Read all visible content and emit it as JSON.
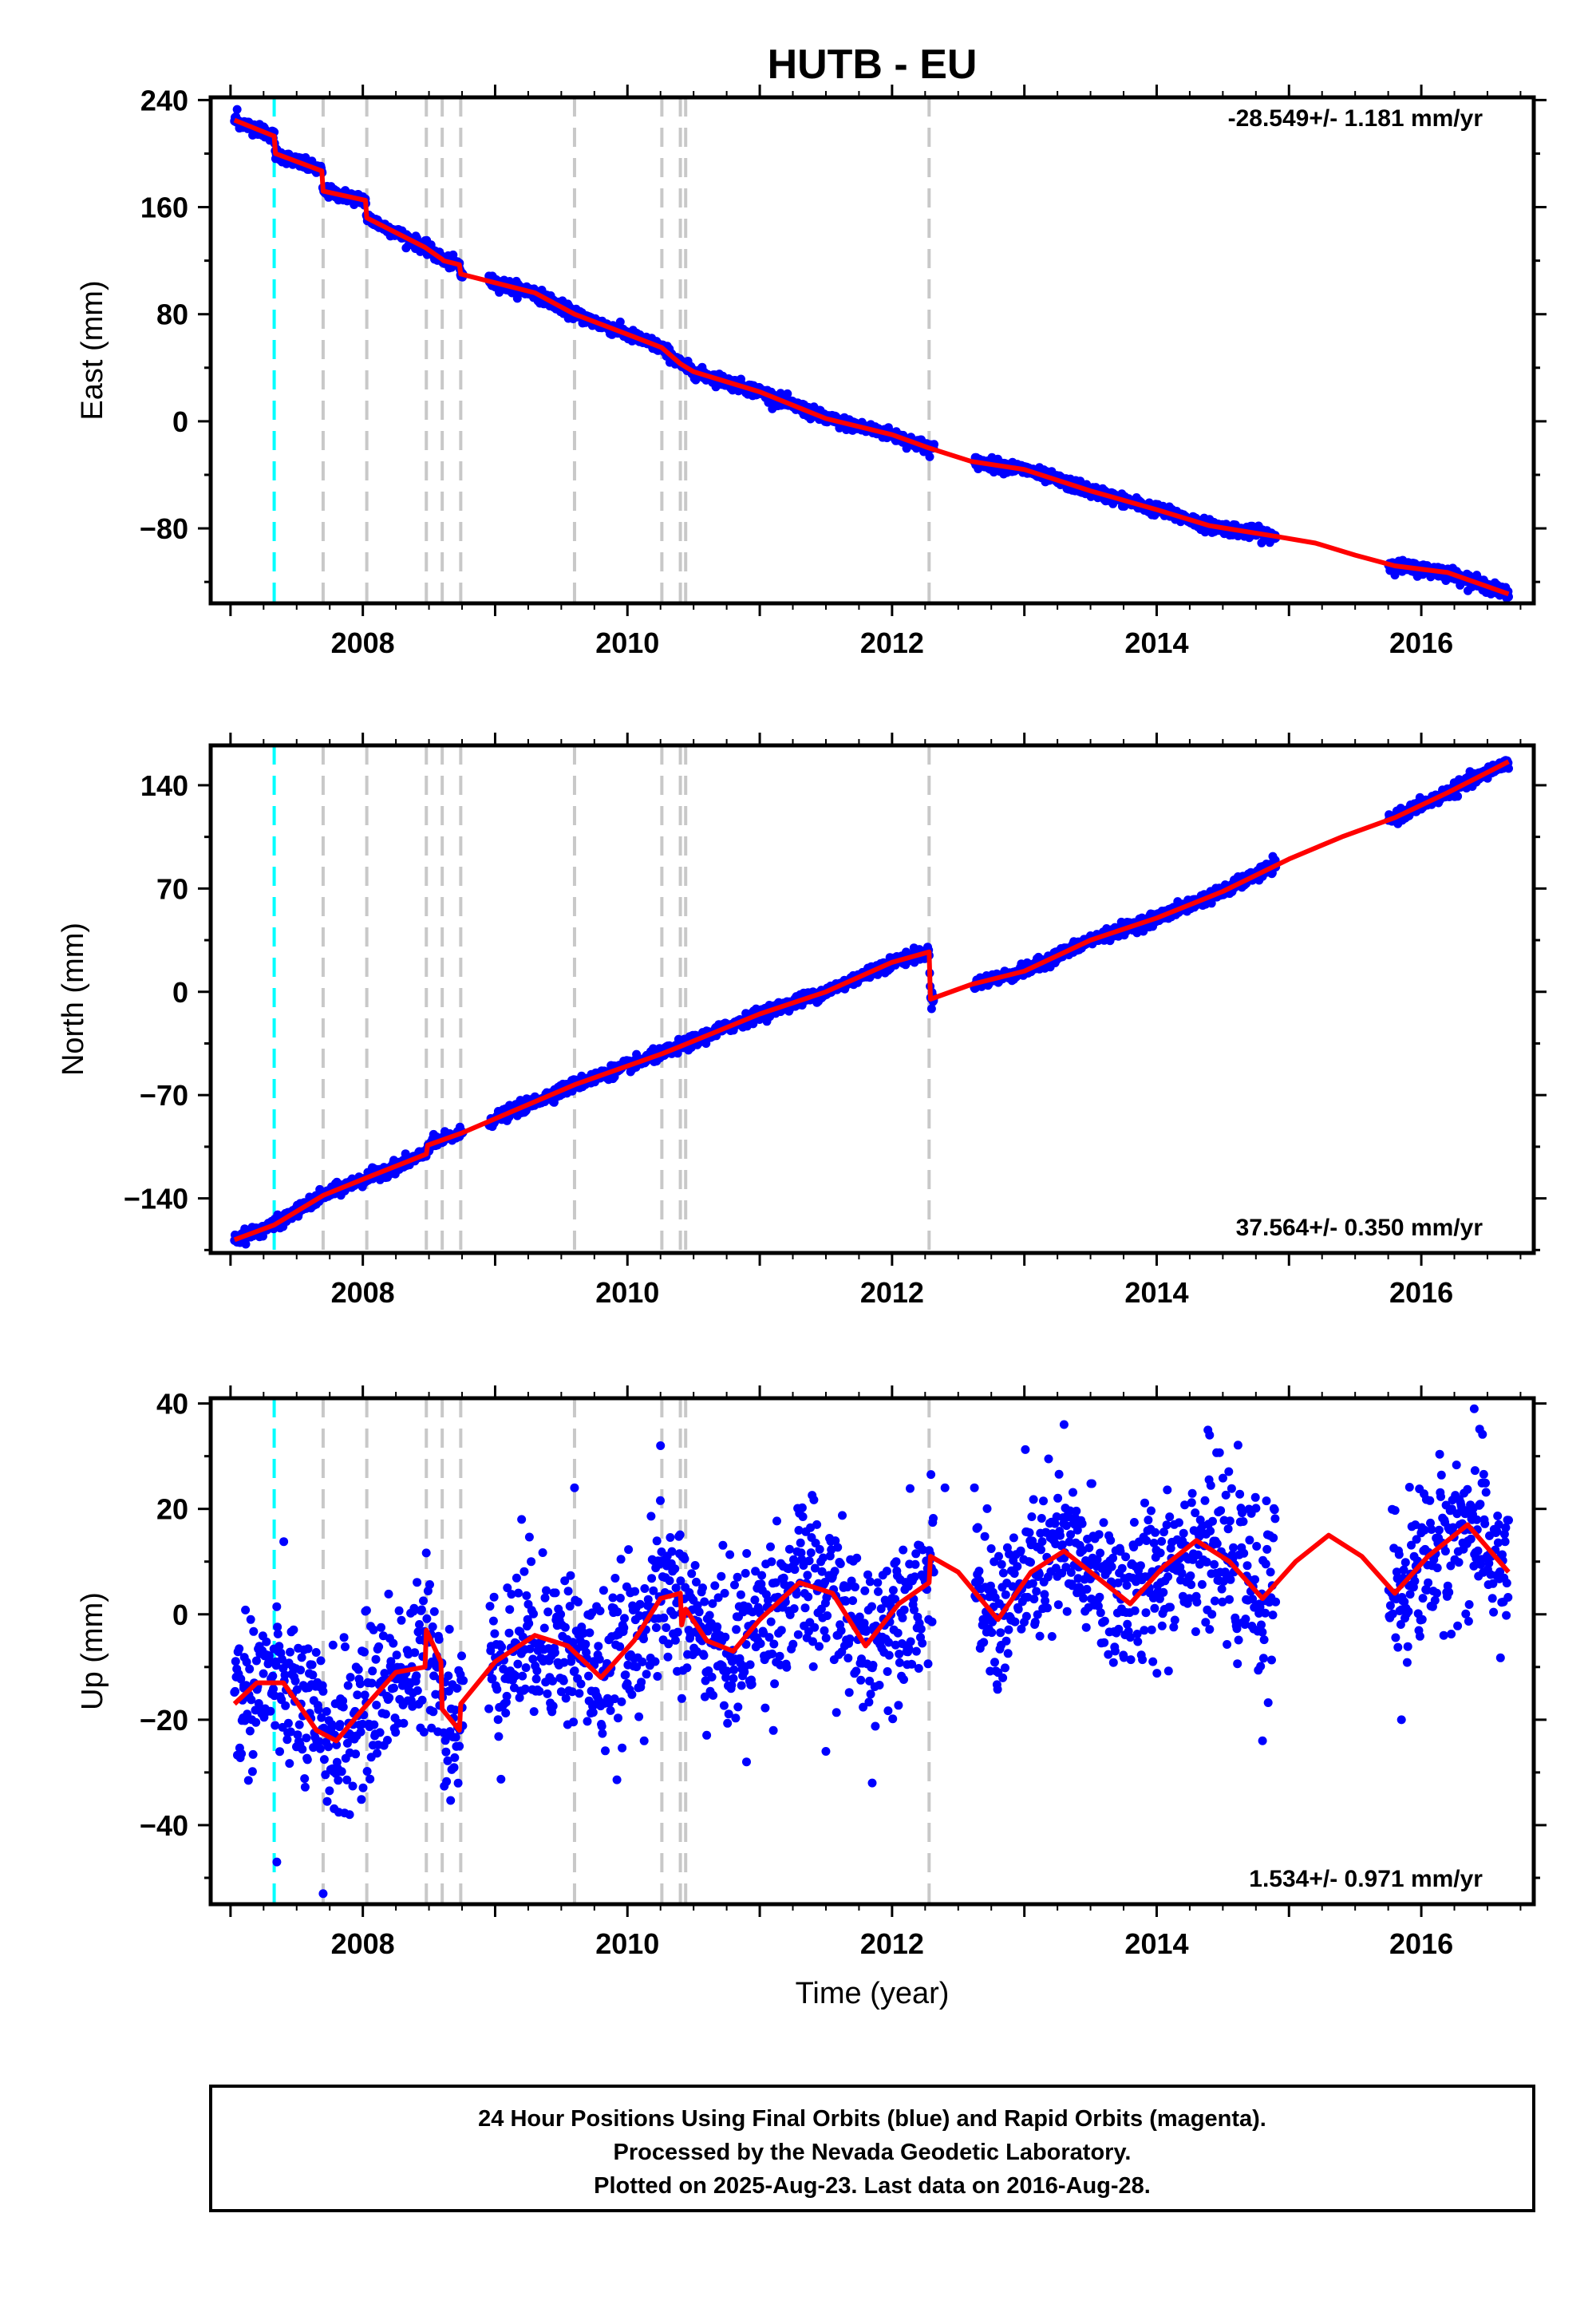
{
  "figure": {
    "title": "HUTB - EU",
    "xlabel": "Time (year)",
    "footer": [
      "24 Hour Positions Using Final Orbits (blue) and Rapid Orbits (magenta).",
      "Processed by the Nevada Geodetic Laboratory.",
      "Plotted on 2025-Aug-23. Last data on 2016-Aug-28."
    ]
  },
  "colors": {
    "data_points": "#0000ff",
    "model_line": "#ff0000",
    "equipment_change": "#c8c8c8",
    "earthquake": "#00ffff",
    "frame": "#000000"
  },
  "event_lines": {
    "earthquake": [
      2007.33
    ],
    "equipment": [
      2007.7,
      2008.03,
      2008.48,
      2008.6,
      2008.74,
      2009.6,
      2010.26,
      2010.4,
      2010.44,
      2012.28
    ]
  },
  "chart_data": [
    {
      "type": "scatter",
      "component": "East",
      "ylabel": "East (mm)",
      "rate_text": "-28.549+/- 1.181 mm/yr",
      "rate_position": "top-right",
      "xlim": [
        2006.85,
        2016.85
      ],
      "ylim": [
        -136,
        242
      ],
      "x_ticks": [
        2008,
        2010,
        2012,
        2014,
        2016
      ],
      "y_ticks": [
        -80,
        0,
        80,
        160,
        240
      ],
      "y_tick_labels": [
        "−80",
        "0",
        "80",
        "160",
        "240"
      ],
      "x_tick_labels": [
        "2008",
        "2010",
        "2012",
        "2014",
        "2016"
      ],
      "data_gaps": [
        [
          2008.76,
          2008.95
        ],
        [
          2012.32,
          2012.62
        ],
        [
          2014.9,
          2015.75
        ]
      ],
      "model_line": [
        [
          2007.03,
          225
        ],
        [
          2007.33,
          213
        ],
        [
          2007.34,
          200
        ],
        [
          2007.69,
          187
        ],
        [
          2007.7,
          172
        ],
        [
          2008.02,
          165
        ],
        [
          2008.03,
          152
        ],
        [
          2008.47,
          130
        ],
        [
          2008.6,
          121
        ],
        [
          2008.61,
          120
        ],
        [
          2008.73,
          117
        ],
        [
          2008.74,
          110
        ],
        [
          2009.3,
          96
        ],
        [
          2009.6,
          80
        ],
        [
          2010.0,
          65
        ],
        [
          2010.26,
          55
        ],
        [
          2010.4,
          43
        ],
        [
          2010.5,
          37
        ],
        [
          2011.0,
          22
        ],
        [
          2011.5,
          2
        ],
        [
          2012.0,
          -10
        ],
        [
          2012.28,
          -20
        ],
        [
          2012.6,
          -30
        ],
        [
          2013.0,
          -36
        ],
        [
          2013.5,
          -52
        ],
        [
          2014.0,
          -66
        ],
        [
          2014.4,
          -78
        ],
        [
          2014.9,
          -86
        ],
        [
          2015.2,
          -91
        ],
        [
          2015.5,
          -100
        ],
        [
          2015.8,
          -108
        ],
        [
          2016.2,
          -113
        ],
        [
          2016.66,
          -129
        ]
      ],
      "sample_points": [
        [
          2007.05,
          233
        ],
        [
          2007.25,
          220
        ],
        [
          2007.55,
          190
        ],
        [
          2007.85,
          166
        ],
        [
          2008.25,
          143
        ],
        [
          2008.55,
          124
        ],
        [
          2009.1,
          100
        ],
        [
          2009.5,
          84
        ],
        [
          2010.1,
          60
        ],
        [
          2010.7,
          30
        ],
        [
          2011.3,
          10
        ],
        [
          2011.9,
          -8
        ],
        [
          2012.8,
          -33
        ],
        [
          2013.3,
          -45
        ],
        [
          2013.9,
          -62
        ],
        [
          2014.6,
          -82
        ],
        [
          2015.9,
          -108
        ],
        [
          2016.5,
          -122
        ]
      ]
    },
    {
      "type": "scatter",
      "component": "North",
      "ylabel": "North (mm)",
      "rate_text": "37.564+/- 0.350 mm/yr",
      "rate_position": "bottom-right",
      "xlim": [
        2006.85,
        2016.85
      ],
      "ylim": [
        -177,
        167
      ],
      "x_ticks": [
        2008,
        2010,
        2012,
        2014,
        2016
      ],
      "y_ticks": [
        -140,
        -70,
        0,
        70,
        140
      ],
      "y_tick_labels": [
        "−140",
        "−70",
        "0",
        "70",
        "140"
      ],
      "x_tick_labels": [
        "2008",
        "2010",
        "2012",
        "2014",
        "2016"
      ],
      "data_gaps": [
        [
          2008.76,
          2008.95
        ],
        [
          2012.32,
          2012.62
        ],
        [
          2014.9,
          2015.75
        ]
      ],
      "model_line": [
        [
          2007.03,
          -168
        ],
        [
          2007.33,
          -158
        ],
        [
          2007.7,
          -138
        ],
        [
          2008.03,
          -126
        ],
        [
          2008.48,
          -110
        ],
        [
          2008.49,
          -104
        ],
        [
          2008.74,
          -96
        ],
        [
          2009.6,
          -63
        ],
        [
          2010.26,
          -42
        ],
        [
          2010.4,
          -37
        ],
        [
          2011.0,
          -15
        ],
        [
          2011.5,
          0
        ],
        [
          2012.0,
          20
        ],
        [
          2012.28,
          27
        ],
        [
          2012.29,
          -5
        ],
        [
          2012.6,
          5
        ],
        [
          2013.0,
          14
        ],
        [
          2013.5,
          35
        ],
        [
          2014.0,
          50
        ],
        [
          2014.5,
          68
        ],
        [
          2015.0,
          90
        ],
        [
          2015.4,
          105
        ],
        [
          2015.8,
          118
        ],
        [
          2016.2,
          135
        ],
        [
          2016.66,
          156
        ]
      ],
      "sample_points": [
        [
          2007.1,
          -166
        ],
        [
          2007.6,
          -143
        ],
        [
          2008.2,
          -122
        ],
        [
          2009.2,
          -82
        ],
        [
          2009.9,
          -52
        ],
        [
          2010.6,
          -28
        ],
        [
          2011.4,
          -3
        ],
        [
          2012.1,
          22
        ],
        [
          2012.8,
          10
        ],
        [
          2013.4,
          30
        ],
        [
          2014.2,
          58
        ],
        [
          2014.8,
          85
        ],
        [
          2015.9,
          120
        ],
        [
          2016.5,
          150
        ]
      ]
    },
    {
      "type": "scatter",
      "component": "Up",
      "ylabel": "Up (mm)",
      "rate_text": "1.534+/- 0.971 mm/yr",
      "rate_position": "bottom-right",
      "xlim": [
        2006.85,
        2016.85
      ],
      "ylim": [
        -55,
        41
      ],
      "x_ticks": [
        2008,
        2010,
        2012,
        2014,
        2016
      ],
      "y_ticks": [
        -40,
        -20,
        0,
        20,
        40
      ],
      "y_tick_labels": [
        "−40",
        "−20",
        "0",
        "20",
        "40"
      ],
      "x_tick_labels": [
        "2008",
        "2010",
        "2012",
        "2014",
        "2016"
      ],
      "data_gaps": [
        [
          2008.76,
          2008.95
        ],
        [
          2012.32,
          2012.62
        ],
        [
          2014.9,
          2015.75
        ]
      ],
      "model_line": [
        [
          2007.03,
          -17
        ],
        [
          2007.2,
          -13
        ],
        [
          2007.4,
          -13
        ],
        [
          2007.65,
          -22
        ],
        [
          2007.8,
          -24
        ],
        [
          2008.0,
          -18
        ],
        [
          2008.25,
          -11
        ],
        [
          2008.47,
          -10
        ],
        [
          2008.48,
          -3
        ],
        [
          2008.59,
          -9
        ],
        [
          2008.6,
          -18
        ],
        [
          2008.73,
          -22
        ],
        [
          2008.74,
          -17
        ],
        [
          2009.0,
          -9
        ],
        [
          2009.3,
          -4
        ],
        [
          2009.55,
          -6
        ],
        [
          2009.8,
          -12
        ],
        [
          2010.05,
          -5
        ],
        [
          2010.25,
          3
        ],
        [
          2010.4,
          4
        ],
        [
          2010.41,
          -2
        ],
        [
          2010.44,
          1
        ],
        [
          2010.6,
          -5
        ],
        [
          2010.8,
          -7
        ],
        [
          2011.0,
          -1
        ],
        [
          2011.3,
          6
        ],
        [
          2011.55,
          4
        ],
        [
          2011.8,
          -6
        ],
        [
          2012.05,
          2
        ],
        [
          2012.28,
          6
        ],
        [
          2012.29,
          11
        ],
        [
          2012.5,
          8
        ],
        [
          2012.8,
          -1
        ],
        [
          2013.05,
          8
        ],
        [
          2013.3,
          12
        ],
        [
          2013.55,
          7
        ],
        [
          2013.8,
          2
        ],
        [
          2014.05,
          9
        ],
        [
          2014.3,
          14
        ],
        [
          2014.55,
          10
        ],
        [
          2014.8,
          3
        ],
        [
          2015.05,
          10
        ],
        [
          2015.3,
          15
        ],
        [
          2015.55,
          11
        ],
        [
          2015.8,
          4
        ],
        [
          2016.05,
          11
        ],
        [
          2016.35,
          17
        ],
        [
          2016.66,
          8
        ]
      ],
      "sample_points": [
        [
          2007.1,
          -14
        ],
        [
          2007.35,
          -47
        ],
        [
          2007.7,
          -53
        ],
        [
          2007.9,
          -38
        ],
        [
          2008.4,
          -12
        ],
        [
          2009.2,
          18
        ],
        [
          2009.6,
          24
        ],
        [
          2010.25,
          32
        ],
        [
          2010.9,
          -28
        ],
        [
          2011.5,
          -26
        ],
        [
          2011.85,
          -32
        ],
        [
          2012.4,
          24
        ],
        [
          2013.3,
          36
        ],
        [
          2014.4,
          34
        ],
        [
          2014.8,
          -24
        ],
        [
          2015.85,
          -20
        ],
        [
          2016.4,
          39
        ]
      ]
    }
  ]
}
